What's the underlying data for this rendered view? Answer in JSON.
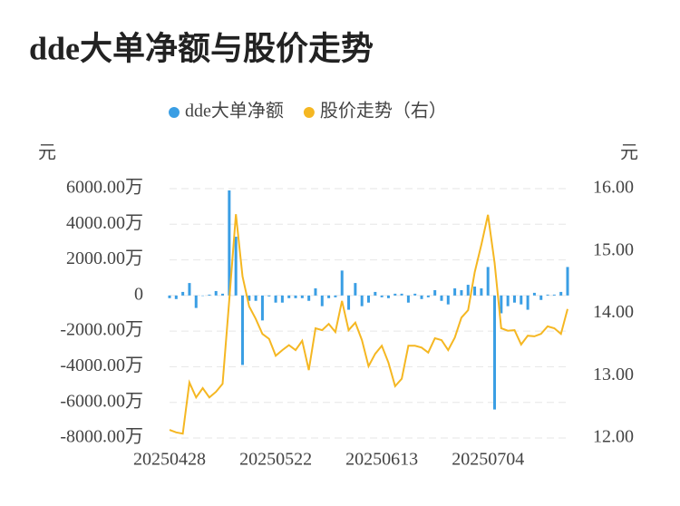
{
  "chart_data": {
    "type": "bar_line",
    "title": "dde大单净额与股价走势",
    "y_label": "元",
    "y2_label": "元",
    "categories": [
      "20250428",
      null,
      null,
      null,
      null,
      null,
      null,
      null,
      null,
      null,
      null,
      null,
      null,
      null,
      null,
      null,
      "20250522",
      null,
      null,
      null,
      null,
      null,
      null,
      null,
      null,
      null,
      null,
      null,
      null,
      null,
      null,
      null,
      "20250613",
      null,
      null,
      null,
      null,
      null,
      null,
      null,
      null,
      null,
      null,
      null,
      null,
      null,
      null,
      null,
      "20250704",
      null,
      null,
      null,
      null,
      null,
      null,
      null,
      null,
      null,
      null,
      null,
      null
    ],
    "series": [
      {
        "name": "dde大单净额",
        "color": "#3a9ee4",
        "type": "bar",
        "values": [
          -150,
          -200,
          200,
          700,
          -700,
          0,
          50,
          250,
          100,
          5900,
          3300,
          -3900,
          -300,
          -300,
          -1400,
          -50,
          -400,
          -400,
          -150,
          -150,
          -150,
          -300,
          400,
          -600,
          -150,
          -100,
          1400,
          -800,
          700,
          -600,
          -400,
          200,
          -100,
          -150,
          100,
          100,
          -400,
          100,
          -200,
          -100,
          300,
          -300,
          -500,
          400,
          300,
          600,
          500,
          400,
          1600,
          -6400,
          -1000,
          -600,
          -400,
          -500,
          -800,
          150,
          -250,
          50,
          50,
          200,
          1600
        ]
      },
      {
        "name": "股价走势（右）",
        "color": "#f5b722",
        "type": "line",
        "axis": "y2",
        "values": [
          12.13,
          12.09,
          12.07,
          12.89,
          12.65,
          12.8,
          12.65,
          12.74,
          12.87,
          14.2,
          15.59,
          14.59,
          14.11,
          13.91,
          13.67,
          13.59,
          13.32,
          13.41,
          13.49,
          13.41,
          13.56,
          13.09,
          13.76,
          13.73,
          13.83,
          13.7,
          14.2,
          13.73,
          13.85,
          13.57,
          13.15,
          13.35,
          13.48,
          13.21,
          12.83,
          12.95,
          13.48,
          13.48,
          13.45,
          13.37,
          13.6,
          13.57,
          13.41,
          13.61,
          13.93,
          14.05,
          14.66,
          15.1,
          15.58,
          14.81,
          13.76,
          13.72,
          13.73,
          13.5,
          13.64,
          13.63,
          13.67,
          13.79,
          13.76,
          13.67,
          14.07
        ]
      }
    ],
    "ylim": [
      -8000,
      6000
    ],
    "yticks": [
      {
        "value": -8000,
        "label": "-8000.00万"
      },
      {
        "value": -6000,
        "label": "-6000.00万"
      },
      {
        "value": -4000,
        "label": "-4000.00万"
      },
      {
        "value": -2000,
        "label": "-2000.00万"
      },
      0,
      {
        "value": 2000,
        "label": "2000.00万"
      },
      {
        "value": 4000,
        "label": "4000.00万"
      },
      {
        "value": 6000,
        "label": "6000.00万"
      }
    ],
    "y2lim": [
      12,
      16
    ],
    "y2ticks": [
      {
        "value": 12,
        "label": "12.00"
      },
      {
        "value": 13,
        "label": "13.00"
      },
      {
        "value": 14,
        "label": "14.00"
      },
      {
        "value": 15,
        "label": "15.00"
      },
      {
        "value": 16,
        "label": "16.00"
      }
    ],
    "grid": true
  }
}
